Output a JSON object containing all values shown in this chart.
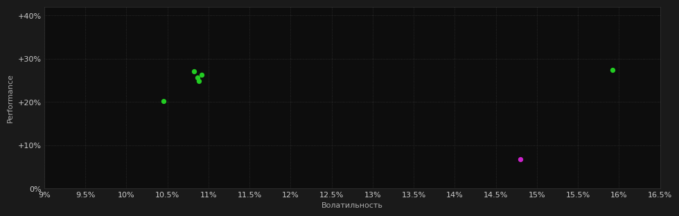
{
  "background_color": "#1a1a1a",
  "plot_bg_color": "#0d0d0d",
  "grid_color": "#333333",
  "grid_style": ":",
  "xlabel": "Волатильность",
  "ylabel": "Performance",
  "xlim": [
    0.09,
    0.165
  ],
  "ylim": [
    0.0,
    0.42
  ],
  "xticks": [
    0.09,
    0.095,
    0.1,
    0.105,
    0.11,
    0.115,
    0.12,
    0.125,
    0.13,
    0.135,
    0.14,
    0.145,
    0.15,
    0.155,
    0.16,
    0.165
  ],
  "yticks": [
    0.0,
    0.1,
    0.2,
    0.3,
    0.4
  ],
  "xtick_labels": [
    "9%",
    "9.5%",
    "10%",
    "10.5%",
    "11%",
    "11.5%",
    "12%",
    "12.5%",
    "13%",
    "13.5%",
    "14%",
    "14.5%",
    "15%",
    "15.5%",
    "16%",
    "16.5%"
  ],
  "ytick_labels": [
    "0%",
    "+10%",
    "+20%",
    "+30%",
    "+40%"
  ],
  "green_points": [
    [
      0.1045,
      0.2015
    ],
    [
      0.1082,
      0.271
    ],
    [
      0.1087,
      0.256
    ],
    [
      0.1088,
      0.248
    ],
    [
      0.1092,
      0.263
    ],
    [
      0.1592,
      0.274
    ]
  ],
  "magenta_points": [
    [
      0.148,
      0.067
    ]
  ],
  "green_color": "#22cc22",
  "magenta_color": "#cc22cc",
  "point_size": 28,
  "tick_color": "#cccccc",
  "label_color": "#aaaaaa",
  "xlabel_fontsize": 8,
  "ylabel_fontsize": 8,
  "tick_fontsize": 8,
  "spine_color": "#333333"
}
